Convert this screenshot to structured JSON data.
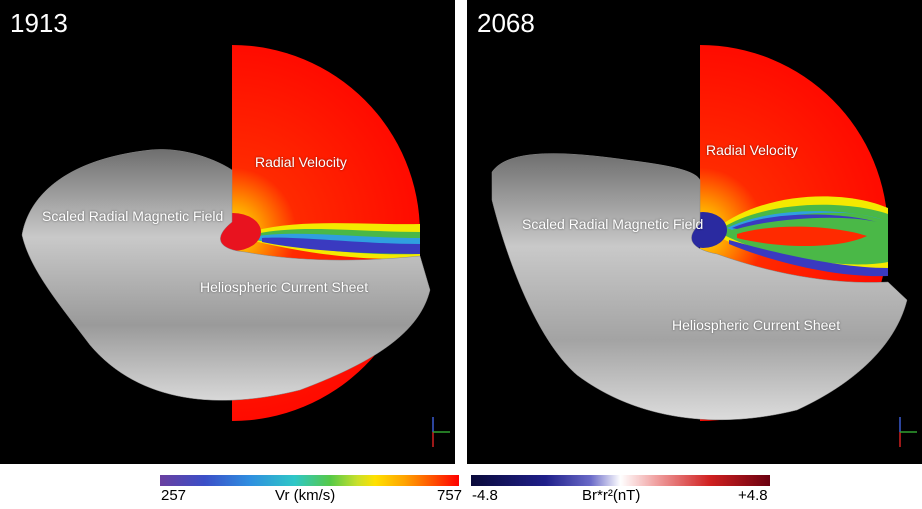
{
  "panels": [
    {
      "id": "1913",
      "labels": {
        "radial_velocity": "Radial Velocity",
        "magnetic_field": "Scaled Radial Magnetic Field",
        "current_sheet": "Heliospheric Current Sheet"
      }
    },
    {
      "id": "2068",
      "labels": {
        "radial_velocity": "Radial Velocity",
        "magnetic_field": "Scaled Radial Magnetic Field",
        "current_sheet": "Heliospheric Current Sheet"
      }
    }
  ],
  "colorbars": {
    "velocity": {
      "min": "257",
      "label": "Vr (km/s)",
      "max": "757"
    },
    "field": {
      "min": "-4.8",
      "label": "Br*r²(nT)",
      "max": "+4.8"
    }
  }
}
